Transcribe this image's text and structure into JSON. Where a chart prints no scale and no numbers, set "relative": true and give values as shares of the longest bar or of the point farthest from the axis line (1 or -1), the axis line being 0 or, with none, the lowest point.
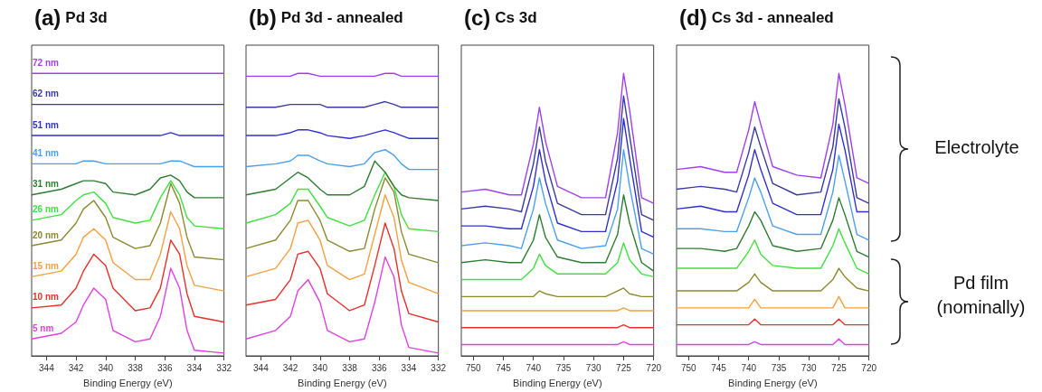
{
  "chart_data": [
    {
      "type": "line",
      "title": "(a) Pd 3d",
      "xlabel": "Binding Energy (eV)",
      "relative": true,
      "xlim": [
        345,
        332
      ],
      "xticks": [
        344,
        342,
        340,
        338,
        336,
        334,
        332
      ],
      "x": [
        345,
        343,
        342,
        341.5,
        340.8,
        340,
        339.5,
        338,
        337,
        336.3,
        335.6,
        335,
        334.5,
        334,
        332
      ],
      "series": [
        {
          "name": "5 nm",
          "color": "#e040e0",
          "values": [
            0.06,
            0.08,
            0.12,
            0.18,
            0.24,
            0.2,
            0.09,
            0.05,
            0.06,
            0.14,
            0.31,
            0.24,
            0.09,
            0.02,
            0.01
          ]
        },
        {
          "name": "10 nm",
          "color": "#e8302a",
          "values": [
            0.17,
            0.18,
            0.24,
            0.3,
            0.36,
            0.32,
            0.24,
            0.16,
            0.17,
            0.24,
            0.41,
            0.36,
            0.22,
            0.14,
            0.12
          ]
        },
        {
          "name": "15 nm",
          "color": "#f5a040",
          "values": [
            0.28,
            0.3,
            0.36,
            0.42,
            0.45,
            0.41,
            0.33,
            0.27,
            0.27,
            0.36,
            0.51,
            0.45,
            0.32,
            0.25,
            0.23
          ]
        },
        {
          "name": "20 nm",
          "color": "#8a8a30",
          "values": [
            0.39,
            0.41,
            0.47,
            0.52,
            0.55,
            0.49,
            0.42,
            0.38,
            0.39,
            0.47,
            0.61,
            0.54,
            0.42,
            0.35,
            0.34
          ]
        },
        {
          "name": "26 nm",
          "color": "#40e040",
          "values": [
            0.48,
            0.5,
            0.55,
            0.57,
            0.58,
            0.54,
            0.49,
            0.47,
            0.48,
            0.56,
            0.62,
            0.57,
            0.49,
            0.46,
            0.45
          ]
        },
        {
          "name": "31 nm",
          "color": "#2e7d32",
          "values": [
            0.57,
            0.59,
            0.61,
            0.62,
            0.62,
            0.61,
            0.58,
            0.57,
            0.59,
            0.63,
            0.64,
            0.62,
            0.58,
            0.56,
            0.56
          ]
        },
        {
          "name": "41 nm",
          "color": "#4aa0f0",
          "values": [
            0.68,
            0.68,
            0.68,
            0.69,
            0.69,
            0.68,
            0.68,
            0.68,
            0.68,
            0.68,
            0.69,
            0.69,
            0.68,
            0.67,
            0.67
          ]
        },
        {
          "name": "51 nm",
          "color": "#3030d0",
          "values": [
            0.78,
            0.78,
            0.78,
            0.78,
            0.78,
            0.78,
            0.78,
            0.78,
            0.78,
            0.78,
            0.79,
            0.78,
            0.78,
            0.78,
            0.78
          ]
        },
        {
          "name": "62 nm",
          "color": "#3a3aa0",
          "values": [
            0.89,
            0.89,
            0.89,
            0.89,
            0.89,
            0.89,
            0.89,
            0.89,
            0.89,
            0.89,
            0.89,
            0.89,
            0.89,
            0.89,
            0.89
          ]
        },
        {
          "name": "72 nm",
          "color": "#a040f0",
          "values": [
            1.0,
            1.0,
            1.0,
            1.0,
            1.0,
            1.0,
            1.0,
            1.0,
            1.0,
            1.0,
            1.0,
            1.0,
            1.0,
            1.0,
            1.0
          ]
        }
      ]
    },
    {
      "type": "line",
      "title": "(b) Pd 3d - annealed",
      "xlabel": "Binding Energy (eV)",
      "relative": true,
      "xlim": [
        345,
        332
      ],
      "xticks": [
        344,
        342,
        340,
        338,
        336,
        334,
        332
      ],
      "x": [
        345,
        343,
        342,
        341.5,
        340.8,
        340,
        339.5,
        338,
        337,
        336.3,
        335.6,
        335,
        334.5,
        334,
        332
      ],
      "series": [
        {
          "color": "#e040e0",
          "values": [
            0.06,
            0.09,
            0.14,
            0.23,
            0.27,
            0.19,
            0.09,
            0.05,
            0.06,
            0.19,
            0.35,
            0.28,
            0.11,
            0.03,
            0.01
          ]
        },
        {
          "color": "#e8302a",
          "values": [
            0.18,
            0.2,
            0.27,
            0.36,
            0.37,
            0.31,
            0.22,
            0.16,
            0.18,
            0.32,
            0.47,
            0.38,
            0.23,
            0.15,
            0.12
          ]
        },
        {
          "color": "#f5a040",
          "values": [
            0.28,
            0.31,
            0.38,
            0.47,
            0.48,
            0.41,
            0.32,
            0.27,
            0.29,
            0.43,
            0.57,
            0.49,
            0.34,
            0.26,
            0.22
          ]
        },
        {
          "color": "#8a8a30",
          "values": [
            0.38,
            0.41,
            0.48,
            0.55,
            0.55,
            0.48,
            0.41,
            0.37,
            0.38,
            0.52,
            0.63,
            0.58,
            0.44,
            0.36,
            0.33
          ]
        },
        {
          "color": "#40e040",
          "values": [
            0.47,
            0.5,
            0.54,
            0.59,
            0.59,
            0.53,
            0.49,
            0.46,
            0.48,
            0.57,
            0.65,
            0.6,
            0.5,
            0.45,
            0.44
          ]
        },
        {
          "color": "#2e7d32",
          "values": [
            0.57,
            0.59,
            0.63,
            0.65,
            0.63,
            0.59,
            0.57,
            0.57,
            0.6,
            0.69,
            0.65,
            0.6,
            0.57,
            0.56,
            0.55
          ]
        },
        {
          "color": "#4aa0f0",
          "values": [
            0.67,
            0.68,
            0.69,
            0.71,
            0.71,
            0.69,
            0.68,
            0.67,
            0.68,
            0.72,
            0.73,
            0.71,
            0.68,
            0.66,
            0.66
          ]
        },
        {
          "color": "#3030d0",
          "values": [
            0.78,
            0.78,
            0.79,
            0.8,
            0.8,
            0.79,
            0.78,
            0.77,
            0.78,
            0.79,
            0.8,
            0.79,
            0.78,
            0.77,
            0.77
          ]
        },
        {
          "color": "#3a3aa0",
          "values": [
            0.88,
            0.88,
            0.89,
            0.89,
            0.89,
            0.89,
            0.88,
            0.88,
            0.88,
            0.89,
            0.9,
            0.89,
            0.88,
            0.88,
            0.88
          ]
        },
        {
          "color": "#a040f0",
          "values": [
            0.99,
            0.99,
            0.99,
            1.0,
            1.0,
            0.99,
            0.99,
            0.99,
            0.99,
            0.99,
            1.0,
            1.0,
            0.99,
            0.99,
            0.99
          ]
        }
      ]
    },
    {
      "type": "line",
      "title": "(c) Cs 3d",
      "xlabel": "Binding Energy (eV)",
      "relative": true,
      "xlim": [
        752,
        720
      ],
      "xticks": [
        750,
        745,
        740,
        735,
        730,
        725,
        720
      ],
      "x": [
        752,
        748,
        744,
        742,
        740,
        739,
        738,
        736,
        732,
        728,
        726,
        725,
        724,
        722,
        720
      ],
      "series": [
        {
          "color": "#e040e0",
          "values": [
            0.04,
            0.04,
            0.04,
            0.04,
            0.04,
            0.04,
            0.04,
            0.04,
            0.04,
            0.04,
            0.04,
            0.05,
            0.04,
            0.04,
            0.04
          ]
        },
        {
          "color": "#e8302a",
          "values": [
            0.1,
            0.1,
            0.1,
            0.1,
            0.1,
            0.1,
            0.1,
            0.1,
            0.1,
            0.1,
            0.1,
            0.11,
            0.1,
            0.1,
            0.1
          ]
        },
        {
          "color": "#f5a040",
          "values": [
            0.16,
            0.16,
            0.16,
            0.16,
            0.16,
            0.16,
            0.16,
            0.16,
            0.16,
            0.16,
            0.16,
            0.17,
            0.16,
            0.16,
            0.16
          ]
        },
        {
          "color": "#8a8a30",
          "values": [
            0.21,
            0.21,
            0.21,
            0.21,
            0.21,
            0.23,
            0.22,
            0.21,
            0.21,
            0.21,
            0.23,
            0.24,
            0.22,
            0.21,
            0.21
          ]
        },
        {
          "color": "#40e040",
          "values": [
            0.27,
            0.27,
            0.27,
            0.27,
            0.31,
            0.36,
            0.32,
            0.29,
            0.29,
            0.29,
            0.33,
            0.4,
            0.34,
            0.29,
            0.28
          ]
        },
        {
          "color": "#2e7d32",
          "values": [
            0.33,
            0.34,
            0.33,
            0.33,
            0.41,
            0.5,
            0.42,
            0.35,
            0.33,
            0.33,
            0.43,
            0.57,
            0.47,
            0.33,
            0.3
          ]
        },
        {
          "color": "#4aa0f0",
          "values": [
            0.39,
            0.4,
            0.39,
            0.38,
            0.52,
            0.63,
            0.54,
            0.41,
            0.38,
            0.39,
            0.52,
            0.73,
            0.6,
            0.38,
            0.36
          ]
        },
        {
          "color": "#3030d0",
          "values": [
            0.46,
            0.46,
            0.45,
            0.45,
            0.6,
            0.73,
            0.62,
            0.47,
            0.44,
            0.44,
            0.62,
            0.84,
            0.7,
            0.44,
            0.42
          ]
        },
        {
          "color": "#3a3aa0",
          "values": [
            0.52,
            0.53,
            0.52,
            0.51,
            0.68,
            0.81,
            0.69,
            0.54,
            0.5,
            0.5,
            0.7,
            0.92,
            0.78,
            0.5,
            0.48
          ]
        },
        {
          "color": "#a040f0",
          "values": [
            0.58,
            0.59,
            0.57,
            0.57,
            0.75,
            0.88,
            0.76,
            0.6,
            0.56,
            0.56,
            0.79,
            1.0,
            0.87,
            0.56,
            0.54
          ]
        }
      ]
    },
    {
      "type": "line",
      "title": "(d) Cs 3d - annealed",
      "xlabel": "Binding Energy (eV)",
      "relative": true,
      "xlim": [
        752,
        720
      ],
      "xticks": [
        750,
        745,
        740,
        735,
        730,
        725,
        720
      ],
      "x": [
        752,
        748,
        744,
        742,
        740,
        739,
        738,
        736,
        732,
        728,
        726,
        725,
        724,
        722,
        720
      ],
      "annotations": [
        "Electrolyte",
        "Pd film (nominally)"
      ],
      "series": [
        {
          "color": "#e040e0",
          "values": [
            0.04,
            0.04,
            0.04,
            0.04,
            0.04,
            0.05,
            0.04,
            0.04,
            0.04,
            0.04,
            0.04,
            0.06,
            0.04,
            0.04,
            0.04
          ]
        },
        {
          "color": "#e8302a",
          "values": [
            0.11,
            0.11,
            0.11,
            0.11,
            0.11,
            0.13,
            0.11,
            0.11,
            0.11,
            0.11,
            0.11,
            0.13,
            0.11,
            0.11,
            0.11
          ]
        },
        {
          "color": "#f5a040",
          "values": [
            0.17,
            0.17,
            0.17,
            0.17,
            0.17,
            0.2,
            0.17,
            0.17,
            0.17,
            0.17,
            0.17,
            0.21,
            0.17,
            0.17,
            0.17
          ]
        },
        {
          "color": "#8a8a30",
          "values": [
            0.23,
            0.23,
            0.23,
            0.23,
            0.26,
            0.29,
            0.26,
            0.23,
            0.23,
            0.23,
            0.27,
            0.31,
            0.28,
            0.24,
            0.23
          ]
        },
        {
          "color": "#40e040",
          "values": [
            0.31,
            0.31,
            0.31,
            0.31,
            0.37,
            0.41,
            0.36,
            0.32,
            0.31,
            0.31,
            0.39,
            0.45,
            0.4,
            0.31,
            0.29
          ]
        },
        {
          "color": "#2e7d32",
          "values": [
            0.38,
            0.38,
            0.37,
            0.38,
            0.46,
            0.51,
            0.48,
            0.39,
            0.37,
            0.38,
            0.48,
            0.56,
            0.5,
            0.37,
            0.35
          ]
        },
        {
          "color": "#4aa0f0",
          "values": [
            0.45,
            0.45,
            0.44,
            0.44,
            0.56,
            0.63,
            0.58,
            0.46,
            0.43,
            0.43,
            0.58,
            0.71,
            0.62,
            0.43,
            0.41
          ]
        },
        {
          "color": "#3030d0",
          "values": [
            0.52,
            0.53,
            0.51,
            0.51,
            0.64,
            0.73,
            0.66,
            0.54,
            0.5,
            0.5,
            0.66,
            0.82,
            0.73,
            0.51,
            0.51
          ]
        },
        {
          "color": "#3a3aa0",
          "values": [
            0.59,
            0.6,
            0.59,
            0.58,
            0.72,
            0.81,
            0.74,
            0.61,
            0.57,
            0.58,
            0.74,
            0.91,
            0.81,
            0.56,
            0.54
          ]
        },
        {
          "color": "#a040f0",
          "values": [
            0.66,
            0.67,
            0.65,
            0.65,
            0.8,
            0.9,
            0.82,
            0.67,
            0.64,
            0.63,
            0.82,
            1.0,
            0.89,
            0.63,
            0.61
          ]
        }
      ]
    }
  ]
}
